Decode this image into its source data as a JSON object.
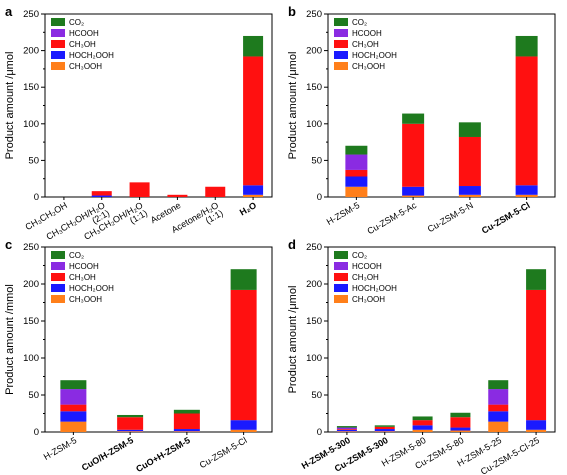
{
  "legend_series": [
    "CO2",
    "HCOOH",
    "CH3OH",
    "HOCH2OOH",
    "CH3OOH"
  ],
  "colors": {
    "CO2": "#1e7a1e",
    "HCOOH": "#8a2be2",
    "CH3OH": "#ff1010",
    "HOCH2OOH": "#1a1aff",
    "CH3OOH": "#ff7f1a"
  },
  "chart_data": [
    {
      "panel": "a",
      "type": "bar",
      "stacked": true,
      "ylabel": "Product amount /μmol",
      "ylim": [
        0,
        250
      ],
      "yticks": [
        0,
        50,
        100,
        150,
        200,
        250
      ],
      "legend_placement": "top-left",
      "legend_labels": [
        "CO₂",
        "HCOOH",
        "CH₃OH",
        "HOCH₂OOH",
        "CH₃OOH"
      ],
      "categories": [
        {
          "lines": [
            "CH₃CH₂OH"
          ],
          "bold": false
        },
        {
          "lines": [
            "CH₃CH₂OH/H₂O",
            "(2:1)"
          ],
          "bold": false
        },
        {
          "lines": [
            "CH₃CH₂OH/H₂O",
            "(1:1)"
          ],
          "bold": false
        },
        {
          "lines": [
            "Acetone"
          ],
          "bold": false
        },
        {
          "lines": [
            "Acetone/H₂O",
            "(1:1)"
          ],
          "bold": false
        },
        {
          "lines": [
            "H₂O"
          ],
          "bold": true
        }
      ],
      "series": [
        {
          "key": "CH3OOH",
          "values": [
            0,
            0,
            0,
            0,
            0,
            3
          ]
        },
        {
          "key": "HOCH2OOH",
          "values": [
            0,
            2,
            0,
            0,
            0,
            13
          ]
        },
        {
          "key": "CH3OH",
          "values": [
            0,
            6,
            20,
            3,
            14,
            176
          ]
        },
        {
          "key": "HCOOH",
          "values": [
            0,
            0,
            0,
            0,
            0,
            0
          ]
        },
        {
          "key": "CO2",
          "values": [
            0,
            0,
            0,
            0,
            0,
            28
          ]
        }
      ]
    },
    {
      "panel": "b",
      "type": "bar",
      "stacked": true,
      "ylabel": "Product amount /μmol",
      "ylim": [
        0,
        250
      ],
      "yticks": [
        0,
        50,
        100,
        150,
        200,
        250
      ],
      "legend_placement": "top-left",
      "legend_labels": [
        "CO₂",
        "HCOOH",
        "CH₃OH",
        "HOCH₂OOH",
        "CH₃OOH"
      ],
      "categories": [
        {
          "lines": [
            "H-ZSM-5"
          ],
          "bold": false
        },
        {
          "lines": [
            "Cu-ZSM-5-Ac"
          ],
          "bold": false
        },
        {
          "lines": [
            "Cu-ZSM-5-N"
          ],
          "bold": false
        },
        {
          "lines": [
            "Cu-ZSM-5-Cl"
          ],
          "bold": true
        }
      ],
      "series": [
        {
          "key": "CH3OOH",
          "values": [
            14,
            2,
            3,
            3
          ]
        },
        {
          "key": "HOCH2OOH",
          "values": [
            14,
            12,
            12,
            13
          ]
        },
        {
          "key": "CH3OH",
          "values": [
            9,
            86,
            67,
            176
          ]
        },
        {
          "key": "HCOOH",
          "values": [
            21,
            0,
            0,
            0
          ]
        },
        {
          "key": "CO2",
          "values": [
            12,
            14,
            20,
            28
          ]
        }
      ]
    },
    {
      "panel": "c",
      "type": "bar",
      "stacked": true,
      "ylabel": "Product amount /mmol",
      "ylim": [
        0,
        250
      ],
      "yticks": [
        0,
        50,
        100,
        150,
        200,
        250
      ],
      "legend_placement": "top-left",
      "legend_labels": [
        "CO₂",
        "HCOOH",
        "CH₃OH",
        "HOCH₂OOH",
        "CH₃OOH"
      ],
      "categories": [
        {
          "lines": [
            "H-ZSM-5"
          ],
          "bold": false
        },
        {
          "lines": [
            "CuO/H-ZSM-5"
          ],
          "bold": true
        },
        {
          "lines": [
            "CuO+H-ZSM-5"
          ],
          "bold": true
        },
        {
          "lines": [
            "Cu-ZSM-5-Cl"
          ],
          "bold": false
        }
      ],
      "series": [
        {
          "key": "CH3OOH",
          "values": [
            14,
            1,
            1,
            3
          ]
        },
        {
          "key": "HOCH2OOH",
          "values": [
            14,
            2,
            3,
            13
          ]
        },
        {
          "key": "CH3OH",
          "values": [
            9,
            17,
            21,
            176
          ]
        },
        {
          "key": "HCOOH",
          "values": [
            21,
            0,
            0,
            0
          ]
        },
        {
          "key": "CO2",
          "values": [
            12,
            3,
            5,
            28
          ]
        }
      ]
    },
    {
      "panel": "d",
      "type": "bar",
      "stacked": true,
      "ylabel": "Product amount /μmol",
      "ylim": [
        0,
        250
      ],
      "yticks": [
        0,
        50,
        100,
        150,
        200,
        250
      ],
      "legend_placement": "top-left",
      "legend_labels": [
        "CO₂",
        "HCOOH",
        "CH₃OH",
        "HOCH₂OOH",
        "CH₃OOH"
      ],
      "categories": [
        {
          "lines": [
            "H-ZSM-5-300"
          ],
          "bold": true
        },
        {
          "lines": [
            "Cu-ZSM-5-300"
          ],
          "bold": true
        },
        {
          "lines": [
            "H-ZSM-5-80"
          ],
          "bold": false
        },
        {
          "lines": [
            "Cu-ZSM-5-80"
          ],
          "bold": false
        },
        {
          "lines": [
            "H-ZSM-5-25"
          ],
          "bold": false
        },
        {
          "lines": [
            "Cu-ZSM-5-Cl-25"
          ],
          "bold": false
        }
      ],
      "series": [
        {
          "key": "CH3OOH",
          "values": [
            1,
            1,
            3,
            2,
            14,
            3
          ]
        },
        {
          "key": "HOCH2OOH",
          "values": [
            2,
            3,
            6,
            4,
            14,
            13
          ]
        },
        {
          "key": "CH3OH",
          "values": [
            1,
            3,
            7,
            14,
            9,
            176
          ]
        },
        {
          "key": "HCOOH",
          "values": [
            2,
            0,
            0,
            0,
            21,
            0
          ]
        },
        {
          "key": "CO2",
          "values": [
            2,
            2,
            5,
            6,
            12,
            28
          ]
        }
      ]
    }
  ]
}
